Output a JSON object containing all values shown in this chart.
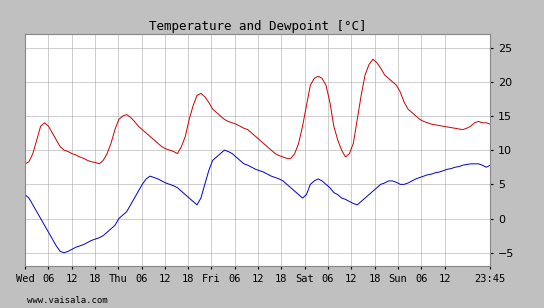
{
  "title": "Temperature and Dewpoint [°C]",
  "ylim": [
    -7,
    27
  ],
  "yticks": [
    -5,
    0,
    5,
    10,
    15,
    20,
    25
  ],
  "bg_color": "#c0c0c0",
  "plot_bg_color": "#ffffff",
  "temp_color": "#cc0000",
  "dewp_color": "#0000cc",
  "watermark": "www.vaisala.com",
  "x_tick_labels": [
    "Wed",
    "06",
    "12",
    "18",
    "Thu",
    "06",
    "12",
    "18",
    "Fri",
    "06",
    "12",
    "18",
    "Sat",
    "06",
    "12",
    "18",
    "Sun",
    "06",
    "12",
    "23:45"
  ],
  "x_tick_positions": [
    0,
    6,
    12,
    18,
    24,
    30,
    36,
    42,
    48,
    54,
    60,
    66,
    72,
    78,
    84,
    90,
    96,
    102,
    108,
    119.75
  ],
  "temp_data": [
    8.0,
    8.3,
    9.5,
    11.5,
    13.5,
    14.0,
    13.5,
    12.5,
    11.5,
    10.5,
    10.0,
    9.8,
    9.5,
    9.3,
    9.0,
    8.8,
    8.5,
    8.3,
    8.2,
    8.0,
    8.5,
    9.5,
    11.0,
    13.0,
    14.5,
    15.0,
    15.2,
    14.8,
    14.2,
    13.5,
    13.0,
    12.5,
    12.0,
    11.5,
    11.0,
    10.5,
    10.2,
    10.0,
    9.8,
    9.5,
    10.5,
    12.0,
    14.5,
    16.5,
    18.0,
    18.3,
    17.8,
    17.0,
    16.0,
    15.5,
    15.0,
    14.5,
    14.2,
    14.0,
    13.8,
    13.5,
    13.2,
    13.0,
    12.5,
    12.0,
    11.5,
    11.0,
    10.5,
    10.0,
    9.5,
    9.2,
    9.0,
    8.8,
    8.8,
    9.5,
    11.0,
    13.5,
    16.5,
    19.5,
    20.5,
    20.8,
    20.5,
    19.5,
    17.0,
    13.5,
    11.5,
    10.0,
    9.0,
    9.5,
    11.0,
    14.5,
    18.0,
    21.0,
    22.5,
    23.3,
    22.8,
    22.0,
    21.0,
    20.5,
    20.0,
    19.5,
    18.5,
    17.0,
    16.0,
    15.5,
    15.0,
    14.5,
    14.2,
    14.0,
    13.8,
    13.7,
    13.6,
    13.5,
    13.4,
    13.3,
    13.2,
    13.1,
    13.0,
    13.2,
    13.5,
    14.0,
    14.2,
    14.0,
    14.0,
    13.8
  ],
  "dewp_data": [
    3.5,
    3.0,
    2.0,
    1.0,
    0.0,
    -1.0,
    -2.0,
    -3.0,
    -4.0,
    -4.8,
    -5.0,
    -4.8,
    -4.5,
    -4.2,
    -4.0,
    -3.8,
    -3.5,
    -3.2,
    -3.0,
    -2.8,
    -2.5,
    -2.0,
    -1.5,
    -1.0,
    0.0,
    0.5,
    1.0,
    2.0,
    3.0,
    4.0,
    5.0,
    5.8,
    6.2,
    6.0,
    5.8,
    5.5,
    5.2,
    5.0,
    4.8,
    4.5,
    4.0,
    3.5,
    3.0,
    2.5,
    2.0,
    3.0,
    5.0,
    7.0,
    8.5,
    9.0,
    9.5,
    10.0,
    9.8,
    9.5,
    9.0,
    8.5,
    8.0,
    7.8,
    7.5,
    7.2,
    7.0,
    6.8,
    6.5,
    6.2,
    6.0,
    5.8,
    5.5,
    5.0,
    4.5,
    4.0,
    3.5,
    3.0,
    3.5,
    5.0,
    5.5,
    5.8,
    5.5,
    5.0,
    4.5,
    3.8,
    3.5,
    3.0,
    2.8,
    2.5,
    2.2,
    2.0,
    2.5,
    3.0,
    3.5,
    4.0,
    4.5,
    5.0,
    5.2,
    5.5,
    5.5,
    5.3,
    5.0,
    5.0,
    5.2,
    5.5,
    5.8,
    6.0,
    6.2,
    6.4,
    6.5,
    6.7,
    6.8,
    7.0,
    7.2,
    7.3,
    7.5,
    7.6,
    7.8,
    7.9,
    8.0,
    8.0,
    8.0,
    7.8,
    7.5,
    7.8
  ]
}
